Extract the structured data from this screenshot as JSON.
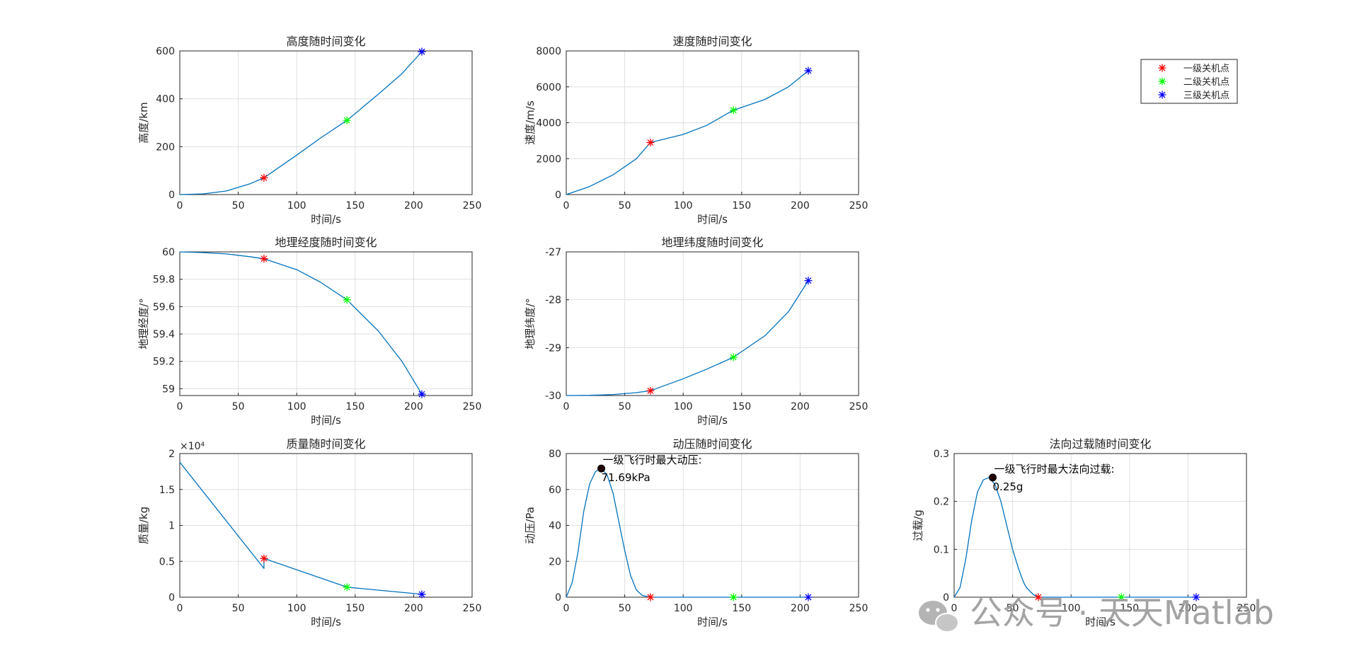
{
  "figure": {
    "watermark": "公众号 · 天天Matlab",
    "legend": {
      "placement": "top-right",
      "entries": [
        {
          "label": "一级关机点",
          "color": "#ff0000"
        },
        {
          "label": "二级关机点",
          "color": "#00ff00"
        },
        {
          "label": "三级关机点",
          "color": "#0000ff"
        }
      ]
    }
  },
  "chart_data": [
    {
      "type": "line",
      "title": "高度随时间变化",
      "xlabel": "时间/s",
      "ylabel": "高度/km",
      "xlim": [
        0,
        250
      ],
      "ylim": [
        0,
        600
      ],
      "xticks": [
        0,
        50,
        100,
        150,
        200,
        250
      ],
      "yticks": [
        0,
        200,
        400,
        600
      ],
      "ytick_labels": [
        "0",
        "200",
        "400",
        "600"
      ],
      "grid": true,
      "line_color": "#0072bd",
      "series": [
        {
          "x": [
            0,
            20,
            40,
            60,
            72,
            100,
            120,
            143,
            170,
            190,
            207
          ],
          "y": [
            0,
            3,
            15,
            45,
            70,
            165,
            235,
            310,
            420,
            505,
            597
          ]
        }
      ],
      "markers": [
        {
          "x": 72,
          "y": 70,
          "color": "#ff0000"
        },
        {
          "x": 143,
          "y": 310,
          "color": "#00ff00"
        },
        {
          "x": 207,
          "y": 597,
          "color": "#0000ff"
        }
      ]
    },
    {
      "type": "line",
      "title": "速度随时间变化",
      "xlabel": "时间/s",
      "ylabel": "速度/m/s",
      "xlim": [
        0,
        250
      ],
      "ylim": [
        0,
        8000
      ],
      "xticks": [
        0,
        50,
        100,
        150,
        200,
        250
      ],
      "yticks": [
        0,
        2000,
        4000,
        6000,
        8000
      ],
      "ytick_labels": [
        "0",
        "2000",
        "4000",
        "6000",
        "8000"
      ],
      "grid": true,
      "line_color": "#0072bd",
      "series": [
        {
          "x": [
            0,
            20,
            40,
            60,
            72,
            100,
            120,
            143,
            170,
            190,
            207
          ],
          "y": [
            0,
            450,
            1100,
            2000,
            2900,
            3350,
            3850,
            4700,
            5300,
            6000,
            6900
          ]
        }
      ],
      "markers": [
        {
          "x": 72,
          "y": 2900,
          "color": "#ff0000"
        },
        {
          "x": 143,
          "y": 4700,
          "color": "#00ff00"
        },
        {
          "x": 207,
          "y": 6900,
          "color": "#0000ff"
        }
      ]
    },
    {
      "type": "line",
      "title": "地理经度随时间变化",
      "xlabel": "时间/s",
      "ylabel": "地理经度/°",
      "xlim": [
        0,
        250
      ],
      "ylim": [
        58.95,
        60
      ],
      "xticks": [
        0,
        50,
        100,
        150,
        200,
        250
      ],
      "yticks": [
        59,
        59.2,
        59.4,
        59.6,
        59.8,
        60
      ],
      "ytick_labels": [
        "59",
        "59.2",
        "59.4",
        "59.6",
        "59.8",
        "60"
      ],
      "grid": true,
      "line_color": "#0072bd",
      "series": [
        {
          "x": [
            0,
            20,
            40,
            60,
            72,
            100,
            120,
            143,
            170,
            190,
            207
          ],
          "y": [
            60,
            59.995,
            59.985,
            59.965,
            59.95,
            59.87,
            59.78,
            59.65,
            59.42,
            59.2,
            58.96
          ]
        }
      ],
      "markers": [
        {
          "x": 72,
          "y": 59.95,
          "color": "#ff0000"
        },
        {
          "x": 143,
          "y": 59.65,
          "color": "#00ff00"
        },
        {
          "x": 207,
          "y": 58.96,
          "color": "#0000ff"
        }
      ]
    },
    {
      "type": "line",
      "title": "地理纬度随时间变化",
      "xlabel": "时间/s",
      "ylabel": "地理纬度/°",
      "xlim": [
        0,
        250
      ],
      "ylim": [
        -30,
        -27
      ],
      "xticks": [
        0,
        50,
        100,
        150,
        200,
        250
      ],
      "yticks": [
        -30,
        -29,
        -28,
        -27
      ],
      "ytick_labels": [
        "-30",
        "-29",
        "-28",
        "-27"
      ],
      "grid": true,
      "line_color": "#0072bd",
      "series": [
        {
          "x": [
            0,
            20,
            40,
            60,
            72,
            100,
            120,
            143,
            170,
            190,
            207
          ],
          "y": [
            -30,
            -29.995,
            -29.98,
            -29.94,
            -29.9,
            -29.65,
            -29.45,
            -29.2,
            -28.75,
            -28.25,
            -27.6
          ]
        }
      ],
      "markers": [
        {
          "x": 72,
          "y": -29.9,
          "color": "#ff0000"
        },
        {
          "x": 143,
          "y": -29.2,
          "color": "#00ff00"
        },
        {
          "x": 207,
          "y": -27.6,
          "color": "#0000ff"
        }
      ]
    },
    {
      "type": "line",
      "title": "质量随时间变化",
      "xlabel": "时间/s",
      "ylabel": "质量/kg",
      "xlim": [
        0,
        250
      ],
      "ylim": [
        0,
        2
      ],
      "xticks": [
        0,
        50,
        100,
        150,
        200,
        250
      ],
      "yticks": [
        0,
        0.5,
        1,
        1.5,
        2
      ],
      "ytick_labels": [
        "0",
        "0.5",
        "1",
        "1.5",
        "2"
      ],
      "exponent_label": "×10⁴",
      "grid": true,
      "line_color": "#0072bd",
      "series": [
        {
          "x": [
            0,
            72,
            72,
            143,
            207
          ],
          "y": [
            1.88,
            0.4,
            0.54,
            0.14,
            0.04
          ]
        }
      ],
      "markers": [
        {
          "x": 72,
          "y": 0.54,
          "color": "#ff0000"
        },
        {
          "x": 143,
          "y": 0.14,
          "color": "#00ff00"
        },
        {
          "x": 207,
          "y": 0.04,
          "color": "#0000ff"
        }
      ]
    },
    {
      "type": "line",
      "title": "动压随时间变化",
      "xlabel": "时间/s",
      "ylabel": "动压/Pa",
      "xlim": [
        0,
        250
      ],
      "ylim": [
        0,
        80
      ],
      "xticks": [
        0,
        50,
        100,
        150,
        200,
        250
      ],
      "yticks": [
        0,
        20,
        40,
        60,
        80
      ],
      "ytick_labels": [
        "0",
        "20",
        "40",
        "60",
        "80"
      ],
      "grid": true,
      "line_color": "#0072bd",
      "series": [
        {
          "x": [
            0,
            5,
            10,
            15,
            20,
            25,
            30,
            35,
            40,
            45,
            50,
            55,
            60,
            65,
            72,
            100,
            143,
            207
          ],
          "y": [
            0,
            8,
            25,
            48,
            63,
            70,
            71.69,
            68,
            58,
            42,
            26,
            12,
            4,
            1,
            0,
            0,
            0,
            0
          ]
        }
      ],
      "markers": [
        {
          "x": 72,
          "y": 0,
          "color": "#ff0000"
        },
        {
          "x": 143,
          "y": 0,
          "color": "#00ff00"
        },
        {
          "x": 207,
          "y": 0,
          "color": "#0000ff"
        }
      ],
      "peak": {
        "x": 30,
        "y": 71.69,
        "label_line1": "一级飞行时最大动压:",
        "label_line2": "71.69kPa"
      }
    },
    {
      "type": "line",
      "title": "法向过载随时间变化",
      "xlabel": "时间/s",
      "ylabel": "过载/g",
      "xlim": [
        0,
        250
      ],
      "ylim": [
        0,
        0.3
      ],
      "xticks": [
        0,
        50,
        100,
        150,
        200,
        250
      ],
      "yticks": [
        0,
        0.1,
        0.2,
        0.3
      ],
      "ytick_labels": [
        "0",
        "0.1",
        "0.2",
        "0.3"
      ],
      "grid": true,
      "line_color": "#0072bd",
      "series": [
        {
          "x": [
            0,
            5,
            10,
            15,
            20,
            25,
            30,
            35,
            40,
            45,
            50,
            55,
            58,
            60,
            62,
            65,
            68,
            72,
            143,
            207
          ],
          "y": [
            0,
            0.02,
            0.08,
            0.16,
            0.22,
            0.245,
            0.25,
            0.235,
            0.2,
            0.15,
            0.1,
            0.06,
            0.04,
            0.028,
            0.02,
            0.012,
            0.005,
            0,
            0,
            0
          ]
        }
      ],
      "markers": [
        {
          "x": 72,
          "y": 0,
          "color": "#ff0000"
        },
        {
          "x": 143,
          "y": 0,
          "color": "#00ff00"
        },
        {
          "x": 207,
          "y": 0,
          "color": "#0000ff"
        }
      ],
      "peak": {
        "x": 33,
        "y": 0.25,
        "label_line1": "一级飞行时最大法向过载:",
        "label_line2": "0.25g"
      }
    }
  ]
}
